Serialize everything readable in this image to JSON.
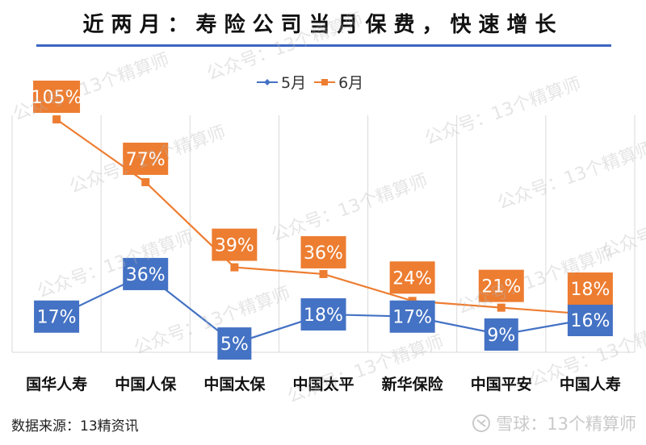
{
  "title": "近两月：寿险公司当月保费，快速增长",
  "legend": [
    {
      "label": "5月",
      "color": "#4472c4",
      "marker": "diamond"
    },
    {
      "label": "6月",
      "color": "#ed7d31",
      "marker": "square"
    }
  ],
  "source": "数据来源：13精资讯",
  "brand": {
    "icon": "xueqiu-logo-icon",
    "text": "雪球：13个精算师"
  },
  "watermark": "公众号：13个精算师",
  "chart_data": {
    "type": "line",
    "title": "近两月：寿险公司当月保费，快速增长",
    "xlabel": "",
    "ylabel": "",
    "categories": [
      "国华人寿",
      "中国人保",
      "中国太保",
      "中国太平",
      "新华保险",
      "中国平安",
      "中国人寿"
    ],
    "series": [
      {
        "name": "5月",
        "color": "#4472c4",
        "values": [
          17,
          36,
          5,
          18,
          17,
          9,
          16
        ],
        "labels": [
          "17%",
          "36%",
          "5%",
          "18%",
          "17%",
          "9%",
          "16%"
        ]
      },
      {
        "name": "6月",
        "color": "#ed7d31",
        "values": [
          105,
          77,
          39,
          36,
          24,
          21,
          18
        ],
        "labels": [
          "105%",
          "77%",
          "39%",
          "36%",
          "24%",
          "21%",
          "18%"
        ]
      }
    ],
    "legend_position": "top",
    "grid": "vertical",
    "y_axis_visible": false,
    "units": "%"
  }
}
